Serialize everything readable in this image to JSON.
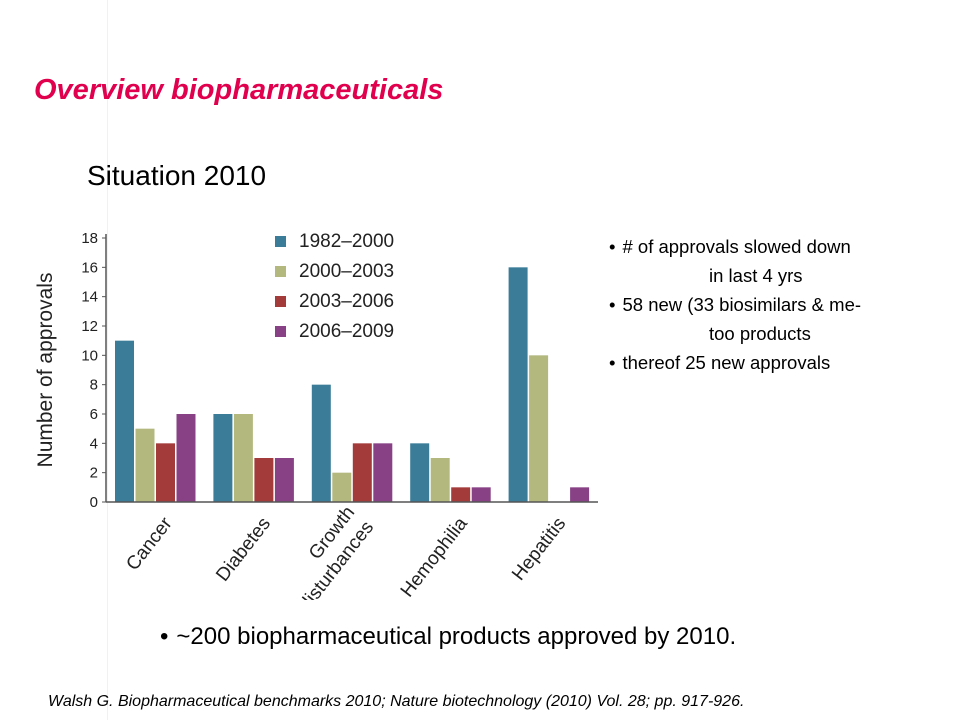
{
  "slide": {
    "title": "Overview biopharmaceuticals",
    "subtitle": "Situation 2010",
    "bullets": [
      {
        "line1": "# of approvals slowed  down",
        "line2": "in last 4 yrs"
      },
      {
        "line1": "58 new (33 biosimilars & me-",
        "line2": "too products"
      },
      {
        "line1": "thereof 25 new approvals",
        "line2": ""
      }
    ],
    "bottom_bullet": "~200 biopharmaceutical products approved by 2010.",
    "citation": "Walsh G. Biopharmaceutical benchmarks 2010; Nature biotechnology (2010) Vol. 28; pp. 917-926."
  },
  "chart_data": {
    "type": "bar",
    "title": "",
    "xlabel": "",
    "ylabel": "Number of approvals",
    "ylim": [
      0,
      18
    ],
    "yticks": [
      0,
      2,
      4,
      6,
      8,
      10,
      12,
      14,
      16,
      18
    ],
    "categories": [
      "Cancer",
      "Diabetes",
      "Growth disturbances",
      "Hemophilia",
      "Hepatitis"
    ],
    "category_labels": [
      [
        "Cancer"
      ],
      [
        "Diabetes"
      ],
      [
        "Growth",
        "disturbances"
      ],
      [
        "Hemophilia"
      ],
      [
        "Hepatitis"
      ]
    ],
    "series": [
      {
        "name": "1982–2000",
        "color": "#3b7d99",
        "values": [
          11,
          6,
          8,
          4,
          16
        ]
      },
      {
        "name": "2000–2003",
        "color": "#b3b87f",
        "values": [
          5,
          6,
          2,
          3,
          10
        ]
      },
      {
        "name": "2003–2006",
        "color": "#a33b3b",
        "values": [
          4,
          3,
          4,
          1,
          0
        ]
      },
      {
        "name": "2006–2009",
        "color": "#874184",
        "values": [
          6,
          3,
          4,
          1,
          1
        ]
      }
    ],
    "legend_position": "top-inside",
    "grid": false
  }
}
